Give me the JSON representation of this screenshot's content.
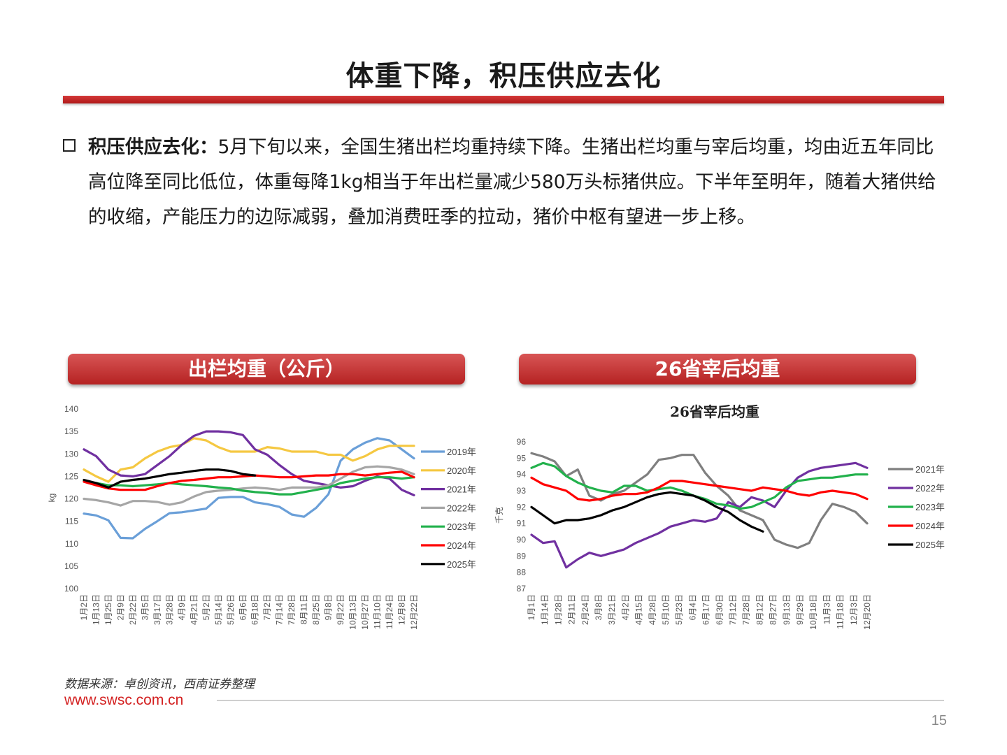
{
  "slide": {
    "title": "体重下降，积压供应去化",
    "bullet_head": "积压供应去化：",
    "bullet_body": "5月下旬以来，全国生猪出栏均重持续下降。生猪出栏均重与宰后均重，均由近五年同比高位降至同比低位，体重每降1kg相当于年出栏量减少580万头标猪供应。下半年至明年，随着大猪供给的收缩，产能压力的边际减弱，叠加消费旺季的拉动，猪价中枢有望进一步上移。",
    "left_banner": "出栏均重（公斤）",
    "right_banner": "26省宰后均重",
    "source": "数据来源：卓创资讯，西南证券整理",
    "website": "www.swsc.com.cn",
    "page_number": "15"
  },
  "chart_data": [
    {
      "type": "line",
      "title": "",
      "ylabel": "kg",
      "ylim": [
        100,
        140
      ],
      "yticks": [
        100,
        105,
        110,
        115,
        120,
        125,
        130,
        135,
        140
      ],
      "xticks": [
        "1月2日",
        "1月13日",
        "1月25日",
        "2月9日",
        "2月22日",
        "3月5日",
        "3月17日",
        "3月28日",
        "4月9日",
        "4月21日",
        "5月2日",
        "5月14日",
        "5月26日",
        "6月6日",
        "6月18日",
        "7月2日",
        "7月14日",
        "7月28日",
        "8月11日",
        "8月25日",
        "9月8日",
        "9月22日",
        "10月13日",
        "10月27日",
        "11月10日",
        "11月24日",
        "12月8日",
        "12月22日"
      ],
      "series": [
        {
          "name": "2019年",
          "color": "#6a9fd8",
          "values": [
            116.7,
            116.3,
            115.2,
            111.3,
            111.2,
            113.3,
            115,
            116.8,
            117,
            117.4,
            117.8,
            120.2,
            120.4,
            120.4,
            119.2,
            118.8,
            118.2,
            116.5,
            116,
            118,
            121,
            128.5,
            131,
            132.5,
            133.5,
            133,
            131,
            129
          ]
        },
        {
          "name": "2020年",
          "color": "#f5c842",
          "values": [
            126.5,
            125,
            123.8,
            126.5,
            127,
            129,
            130.5,
            131.5,
            132,
            133.5,
            133,
            131.5,
            130.5,
            130.5,
            130.5,
            131.5,
            131.2,
            130.5,
            130.5,
            130.5,
            129.8,
            129.8,
            128.5,
            129.5,
            131,
            131.8,
            131.8,
            131.8
          ]
        },
        {
          "name": "2021年",
          "color": "#7030a0",
          "values": [
            131,
            129.5,
            126.5,
            125.2,
            125,
            125.5,
            127.5,
            129.5,
            132,
            134,
            135,
            135,
            134.8,
            134.2,
            131,
            129.8,
            127.5,
            125.5,
            124,
            123.5,
            123,
            122.5,
            122.8,
            124,
            125,
            124.5,
            122,
            120.8
          ]
        },
        {
          "name": "2022年",
          "color": "#a6a6a6",
          "values": [
            120,
            119.7,
            119.2,
            118.5,
            119.5,
            119.5,
            119.3,
            118.7,
            119.2,
            120.5,
            121.5,
            121.8,
            122,
            122.3,
            122.5,
            122.3,
            122,
            122.5,
            122.5,
            122.5,
            123,
            124.5,
            126,
            127,
            127.2,
            127,
            126.5,
            125.5
          ]
        },
        {
          "name": "2023年",
          "color": "#22b14c",
          "values": [
            124,
            123.5,
            123,
            123,
            122.8,
            123,
            123.2,
            123.5,
            123.2,
            123,
            122.8,
            122.5,
            122.3,
            121.8,
            121.5,
            121.3,
            121,
            121,
            121.5,
            122,
            122.5,
            123.5,
            124,
            124.5,
            124.8,
            124.8,
            124.5,
            124.8
          ]
        },
        {
          "name": "2024年",
          "color": "#ff0000",
          "values": [
            123.8,
            123,
            122.3,
            122,
            122,
            122,
            122.8,
            123.5,
            124,
            124.2,
            124.5,
            124.8,
            124.8,
            125,
            125.2,
            125,
            124.8,
            124.8,
            125,
            125.2,
            125.2,
            125.5,
            125.5,
            125.2,
            125.5,
            125.8,
            126,
            124.8
          ]
        },
        {
          "name": "2025年",
          "color": "#000000",
          "values": [
            124.2,
            123.5,
            122.5,
            123.8,
            124.2,
            124.5,
            125,
            125.5,
            125.8,
            126.2,
            126.5,
            126.5,
            126.2,
            125.5,
            125.2
          ]
        }
      ]
    },
    {
      "type": "line",
      "title": "26省宰后均重",
      "ylabel": "千克",
      "ylim": [
        87,
        96
      ],
      "yticks": [
        87,
        88,
        89,
        90,
        91,
        92,
        93,
        94,
        95,
        96
      ],
      "xticks": [
        "1月1日",
        "1月14日",
        "1月28日",
        "2月11日",
        "2月24日",
        "3月8日",
        "3月21日",
        "4月2日",
        "4月15日",
        "4月28日",
        "5月10日",
        "5月23日",
        "6月4日",
        "6月17日",
        "6月30日",
        "7月12日",
        "7月28日",
        "8月12日",
        "8月27日",
        "9月13日",
        "9月29日",
        "10月18日",
        "11月3日",
        "11月18日",
        "12月3日",
        "12月20日"
      ],
      "series": [
        {
          "name": "2021年",
          "color": "#7f7f7f",
          "values": [
            95.3,
            95.1,
            94.8,
            93.9,
            94.3,
            92.7,
            92.4,
            92.8,
            93.0,
            93.5,
            94.0,
            94.9,
            95.0,
            95.2,
            95.2,
            94.1,
            93.3,
            92.7,
            91.8,
            91.5,
            91.2,
            90.0,
            89.7,
            89.5,
            89.8,
            91.2,
            92.2,
            92.0,
            91.7,
            91.0
          ]
        },
        {
          "name": "2022年",
          "color": "#7030a0",
          "values": [
            90.3,
            89.8,
            89.9,
            88.3,
            88.8,
            89.2,
            89.0,
            89.2,
            89.4,
            89.8,
            90.1,
            90.4,
            90.8,
            91.0,
            91.2,
            91.1,
            91.3,
            92.3,
            92.0,
            92.6,
            92.4,
            92.0,
            93.0,
            93.8,
            94.2,
            94.4,
            94.5,
            94.6,
            94.7,
            94.4
          ]
        },
        {
          "name": "2023年",
          "color": "#22b14c",
          "values": [
            94.4,
            94.7,
            94.5,
            93.9,
            93.5,
            93.2,
            93.0,
            92.9,
            93.3,
            93.3,
            93.0,
            93.1,
            93.2,
            93.0,
            92.7,
            92.5,
            92.2,
            92.1,
            91.9,
            92.0,
            92.3,
            92.6,
            93.2,
            93.6,
            93.7,
            93.8,
            93.8,
            93.9,
            94.0,
            94.0
          ]
        },
        {
          "name": "2024年",
          "color": "#ff0000",
          "values": [
            93.8,
            93.4,
            93.2,
            93.0,
            92.5,
            92.4,
            92.5,
            92.7,
            92.8,
            92.8,
            92.9,
            93.2,
            93.6,
            93.6,
            93.5,
            93.4,
            93.3,
            93.2,
            93.1,
            93.0,
            93.2,
            93.1,
            93.0,
            92.8,
            92.7,
            92.9,
            93.0,
            92.9,
            92.8,
            92.5
          ]
        },
        {
          "name": "2025年",
          "color": "#000000",
          "values": [
            92.0,
            91.5,
            91.0,
            91.2,
            91.2,
            91.3,
            91.5,
            91.8,
            92.0,
            92.3,
            92.6,
            92.8,
            92.9,
            92.8,
            92.7,
            92.4,
            92.0,
            91.7,
            91.2,
            90.8,
            90.5
          ]
        }
      ]
    }
  ]
}
